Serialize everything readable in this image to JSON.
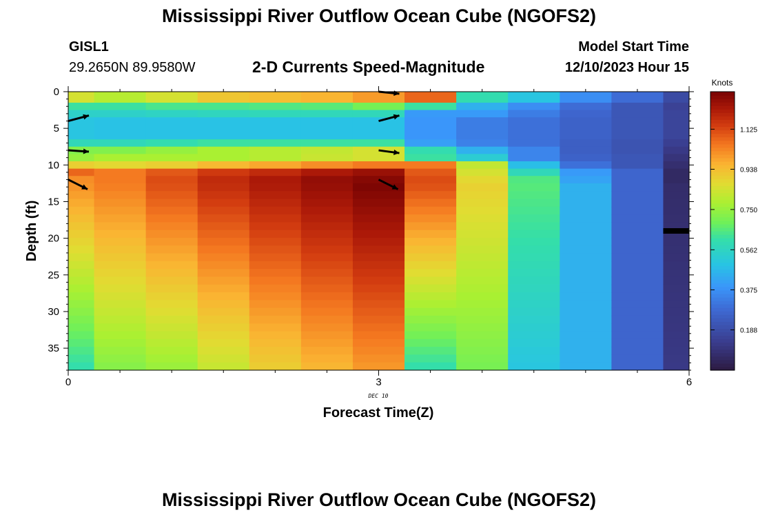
{
  "header": {
    "title": "Mississippi River Outflow Ocean Cube (NGOFS2)",
    "station_id": "GISL1",
    "station_coords": "29.2650N  89.9580W",
    "subtitle": "2-D Currents Speed-Magnitude",
    "model_start_label": "Model Start Time",
    "model_start_value": "12/10/2023 Hour 15"
  },
  "footer": {
    "title": "Mississippi River Outflow Ocean Cube (NGOFS2)"
  },
  "chart_data": {
    "type": "heatmap",
    "title": "2-D Currents Speed-Magnitude",
    "xlabel": "Forecast Time(Z)",
    "ylabel": "Depth (ft)",
    "x_date_label": "DEC 10",
    "xlim": [
      0,
      6
    ],
    "ylim": [
      0,
      38
    ],
    "y_inverted": true,
    "x_ticks": [
      "0",
      "3",
      "6"
    ],
    "x_tick_values": [
      0,
      3,
      6
    ],
    "y_ticks": [
      "0",
      "5",
      "10",
      "15",
      "20",
      "25",
      "30",
      "35"
    ],
    "y_tick_values": [
      0,
      5,
      10,
      15,
      20,
      25,
      30,
      35
    ],
    "colorbar": {
      "label": "Knots",
      "range": [
        0,
        1.3
      ],
      "ticks": [
        "1.125",
        "0.938",
        "0.750",
        "0.562",
        "0.375",
        "0.188"
      ],
      "tick_values": [
        1.125,
        0.938,
        0.75,
        0.562,
        0.375,
        0.188
      ]
    },
    "time_columns": [
      {
        "start": 0.0,
        "end": 0.25
      },
      {
        "start": 0.25,
        "end": 0.75
      },
      {
        "start": 0.75,
        "end": 1.25
      },
      {
        "start": 1.25,
        "end": 1.75
      },
      {
        "start": 1.75,
        "end": 2.25
      },
      {
        "start": 2.25,
        "end": 2.75
      },
      {
        "start": 2.75,
        "end": 3.25
      },
      {
        "start": 3.25,
        "end": 3.75
      },
      {
        "start": 3.75,
        "end": 4.25
      },
      {
        "start": 4.25,
        "end": 4.75
      },
      {
        "start": 4.75,
        "end": 5.25
      },
      {
        "start": 5.25,
        "end": 5.75
      },
      {
        "start": 5.75,
        "end": 6.0
      }
    ],
    "depth_layers_ft": [
      {
        "top": 0,
        "bottom": 1.5
      },
      {
        "top": 1.5,
        "bottom": 2.5
      },
      {
        "top": 2.5,
        "bottom": 3.5
      },
      {
        "top": 3.5,
        "bottom": 6.5
      },
      {
        "top": 6.5,
        "bottom": 7.5
      },
      {
        "top": 7.5,
        "bottom": 8.5
      },
      {
        "top": 8.5,
        "bottom": 9.5
      },
      {
        "top": 9.5,
        "bottom": 10.5
      },
      {
        "top": 10.5,
        "bottom": 11.5
      },
      {
        "top": 11.5,
        "bottom": 12.5
      }
    ],
    "upper_speed_knots": [
      [
        0.85,
        0.8,
        0.85,
        0.92,
        0.94,
        0.96,
        1.0,
        1.08,
        0.6,
        0.5,
        0.37,
        0.29,
        0.18
      ],
      [
        0.62,
        0.62,
        0.64,
        0.64,
        0.65,
        0.66,
        0.7,
        0.62,
        0.45,
        0.37,
        0.29,
        0.22,
        0.15
      ],
      [
        0.55,
        0.55,
        0.56,
        0.57,
        0.58,
        0.58,
        0.58,
        0.4,
        0.4,
        0.33,
        0.27,
        0.22,
        0.16
      ],
      [
        0.5,
        0.49,
        0.49,
        0.49,
        0.49,
        0.49,
        0.49,
        0.39,
        0.33,
        0.3,
        0.26,
        0.22,
        0.16
      ],
      [
        0.58,
        0.58,
        0.6,
        0.62,
        0.62,
        0.62,
        0.62,
        0.41,
        0.34,
        0.3,
        0.25,
        0.21,
        0.14
      ],
      [
        0.72,
        0.72,
        0.75,
        0.78,
        0.8,
        0.82,
        0.85,
        0.6,
        0.45,
        0.35,
        0.25,
        0.21,
        0.12
      ],
      [
        0.75,
        0.78,
        0.78,
        0.78,
        0.8,
        0.83,
        0.85,
        0.62,
        0.53,
        0.35,
        0.26,
        0.22,
        0.1
      ],
      [
        0.9,
        0.88,
        0.9,
        0.95,
        0.98,
        1.02,
        1.05,
        1.05,
        0.82,
        0.48,
        0.3,
        0.22,
        0.08
      ],
      [
        1.08,
        1.05,
        1.1,
        1.15,
        1.18,
        1.22,
        1.25,
        1.1,
        0.85,
        0.58,
        0.4,
        0.27,
        0.06
      ],
      [
        1.02,
        1.05,
        1.12,
        1.18,
        1.22,
        1.26,
        1.28,
        1.12,
        0.88,
        0.65,
        0.42,
        0.27,
        0.06
      ]
    ],
    "lower_profile": {
      "depth_top_ft": 12.5,
      "depth_bottom_ft": 38,
      "speed_top_knots": [
        1.02,
        1.05,
        1.12,
        1.18,
        1.22,
        1.26,
        1.3,
        1.12,
        0.9,
        0.66,
        0.45,
        0.27,
        0.07
      ],
      "speed_bottom_knots": [
        0.6,
        0.72,
        0.75,
        0.82,
        0.9,
        0.95,
        1.0,
        0.6,
        0.7,
        0.5,
        0.45,
        0.27,
        0.12
      ]
    },
    "gap_marker_depth_ft": 19,
    "vector_arrows": [
      {
        "time": 0.0,
        "depth": 4.0,
        "dx_px": 30,
        "dy_px": -8
      },
      {
        "time": 0.0,
        "depth": 8.0,
        "dx_px": 30,
        "dy_px": 2
      },
      {
        "time": 0.0,
        "depth": 12.0,
        "dx_px": 28,
        "dy_px": 14
      },
      {
        "time": 3.0,
        "depth": 0.0,
        "dx_px": 30,
        "dy_px": 3
      },
      {
        "time": 3.0,
        "depth": 4.0,
        "dx_px": 30,
        "dy_px": -8
      },
      {
        "time": 3.0,
        "depth": 8.0,
        "dx_px": 30,
        "dy_px": 4
      },
      {
        "time": 3.0,
        "depth": 12.0,
        "dx_px": 28,
        "dy_px": 14
      }
    ]
  }
}
